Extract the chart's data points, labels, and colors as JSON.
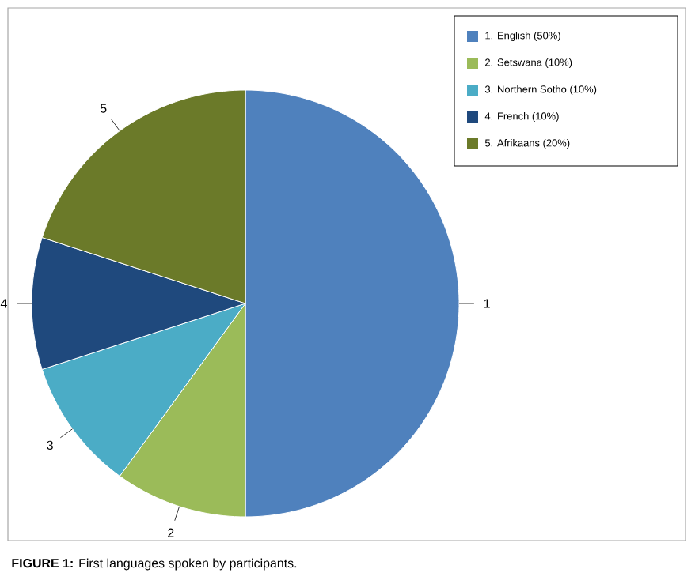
{
  "chart_data": {
    "type": "pie",
    "categories": [
      "1. English (50%)",
      "2. Setswana (10%)",
      "3. Northern Sotho (10%)",
      "4. French (10%)",
      "5. Afrikaans (20%)"
    ],
    "values": [
      50,
      10,
      10,
      10,
      20
    ],
    "colors": [
      "#4f81bd",
      "#9bbb59",
      "#4bacc6",
      "#1f497d",
      "#6b7a29"
    ],
    "legend": "top right",
    "annotations": [
      "**FIGURE 1:** First languages spoken by participants.",
      {
        "text": "1",
        "x": "1. English (50%)"
      },
      {
        "text": "2",
        "x": "2. Setswana (10%)"
      },
      {
        "text": "3",
        "x": "3. Northern Sotho (10%)"
      },
      {
        "text": "4",
        "x": "4. French (10%)"
      },
      {
        "text": "5",
        "x": "5. Afrikaans (20%)"
      }
    ]
  }
}
